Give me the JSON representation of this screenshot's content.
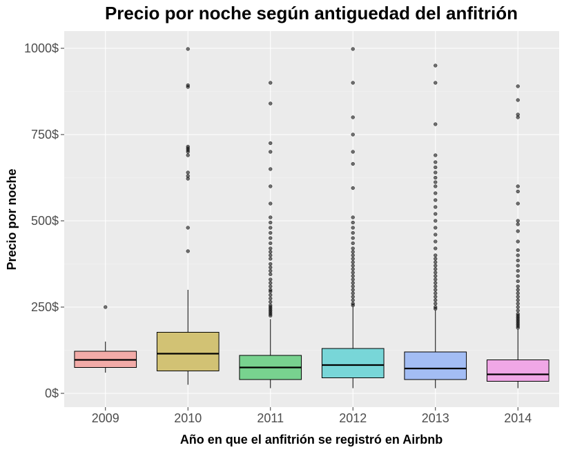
{
  "chart_data": {
    "type": "boxplot",
    "title": "Precio por noche según antiguedad del anfitrión",
    "xlabel": "Año en que el anfitrión se registró en Airbnb",
    "ylabel": "Precio por noche",
    "ylim": [
      -40,
      1050
    ],
    "yticks": [
      0,
      250,
      500,
      750,
      1000
    ],
    "ytick_labels": [
      "0$",
      "250$",
      "500$",
      "750$",
      "1000$"
    ],
    "grid": true,
    "legend": "none",
    "categories": [
      "2009",
      "2010",
      "2011",
      "2012",
      "2013",
      "2014"
    ],
    "colors": [
      "#F2ABA8",
      "#D2C274",
      "#78D28F",
      "#78D6D8",
      "#A3BDF4",
      "#F0A7E6"
    ],
    "boxes": [
      {
        "min": 60,
        "q1": 75,
        "median": 97,
        "q3": 122,
        "max": 150,
        "outliers": [
          250
        ]
      },
      {
        "min": 25,
        "q1": 65,
        "median": 115,
        "q3": 177,
        "max": 300,
        "outliers": [
          412,
          480,
          622,
          630,
          640,
          690,
          700,
          705,
          710,
          715,
          888,
          893,
          998
        ]
      },
      {
        "min": 15,
        "q1": 40,
        "median": 75,
        "q3": 110,
        "max": 215,
        "outliers": [
          225,
          230,
          235,
          240,
          245,
          250,
          255,
          265,
          275,
          285,
          295,
          300,
          310,
          320,
          330,
          345,
          355,
          365,
          375,
          390,
          400,
          410,
          420,
          435,
          450,
          465,
          480,
          495,
          510,
          550,
          600,
          650,
          700,
          725,
          840,
          900
        ]
      },
      {
        "min": 15,
        "q1": 45,
        "median": 82,
        "q3": 130,
        "max": 250,
        "outliers": [
          255,
          260,
          270,
          280,
          290,
          300,
          310,
          320,
          330,
          340,
          350,
          360,
          370,
          380,
          390,
          400,
          410,
          420,
          435,
          450,
          465,
          480,
          495,
          510,
          595,
          665,
          700,
          750,
          800,
          900,
          998
        ]
      },
      {
        "min": 15,
        "q1": 40,
        "median": 72,
        "q3": 120,
        "max": 240,
        "outliers": [
          245,
          250,
          260,
          270,
          280,
          290,
          300,
          310,
          320,
          330,
          340,
          350,
          360,
          370,
          380,
          390,
          400,
          420,
          440,
          460,
          480,
          500,
          520,
          540,
          560,
          580,
          600,
          612,
          625,
          640,
          655,
          670,
          690,
          780,
          900,
          950
        ]
      },
      {
        "min": 15,
        "q1": 35,
        "median": 55,
        "q3": 97,
        "max": 185,
        "outliers": [
          190,
          195,
          200,
          205,
          210,
          215,
          220,
          225,
          230,
          240,
          250,
          260,
          270,
          280,
          290,
          300,
          310,
          325,
          340,
          355,
          370,
          385,
          400,
          415,
          440,
          470,
          490,
          500,
          550,
          585,
          600,
          800,
          808,
          850,
          890
        ]
      }
    ]
  }
}
